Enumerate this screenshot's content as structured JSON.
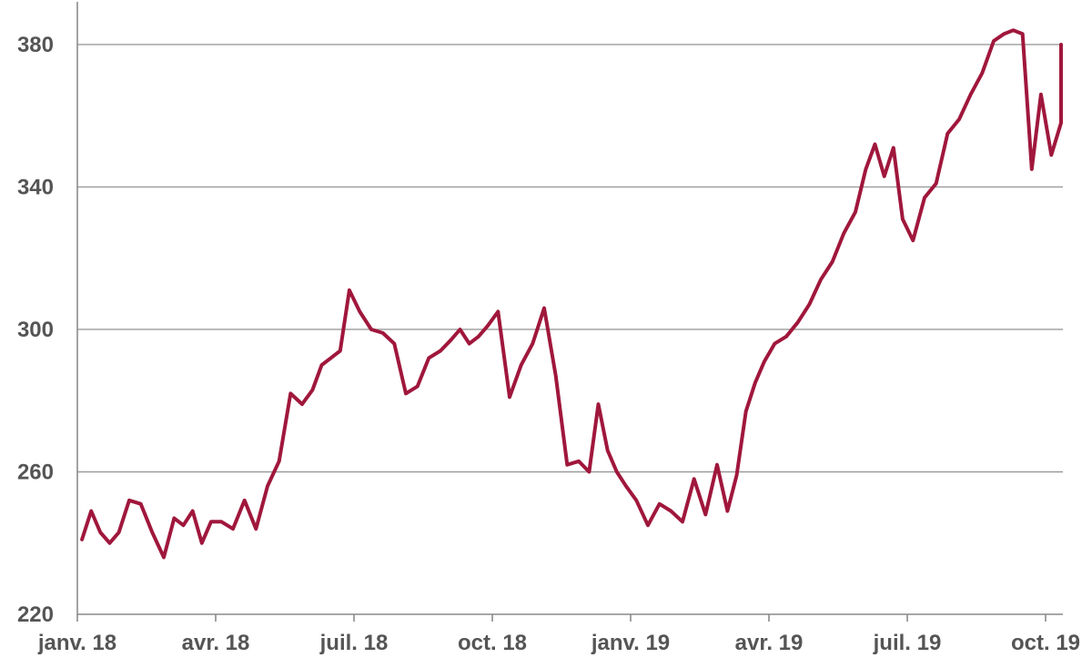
{
  "colors": {
    "series": "#A0173C",
    "grid": "#9a9a9a",
    "axis": "#8a8a8a",
    "tick_text": "#555555",
    "background": "#ffffff"
  },
  "chart_data": {
    "type": "line",
    "title": "",
    "xlabel": "",
    "ylabel": "",
    "ylim": [
      220,
      392
    ],
    "y_ticks": [
      220,
      260,
      300,
      340,
      380
    ],
    "y_tick_labels": [
      "220",
      "260",
      "300",
      "340",
      "380"
    ],
    "x_ticks": [
      {
        "label": "janv. 18",
        "date": "2018-01"
      },
      {
        "label": "avr. 18",
        "date": "2018-04"
      },
      {
        "label": "juil. 18",
        "date": "2018-07"
      },
      {
        "label": "oct. 18",
        "date": "2018-10"
      },
      {
        "label": "janv. 19",
        "date": "2019-01"
      },
      {
        "label": "avr. 19",
        "date": "2019-04"
      },
      {
        "label": "juil. 19",
        "date": "2019-07"
      },
      {
        "label": "oct. 19",
        "date": "2019-10"
      }
    ],
    "grid": "horizontal",
    "legend": "none",
    "series": [
      {
        "x": [
          "2018-01",
          "2018-01",
          "2018-01",
          "2018-01",
          "2018-01",
          "2018-02",
          "2018-02",
          "2018-02",
          "2018-02",
          "2018-03",
          "2018-03",
          "2018-03",
          "2018-03",
          "2018-03",
          "2018-04",
          "2018-04",
          "2018-04",
          "2018-04",
          "2018-05",
          "2018-05",
          "2018-05",
          "2018-05",
          "2018-06",
          "2018-06",
          "2018-06",
          "2018-06",
          "2018-06",
          "2018-07",
          "2018-07",
          "2018-07",
          "2018-07",
          "2018-08",
          "2018-08",
          "2018-08",
          "2018-08",
          "2018-09",
          "2018-09",
          "2018-09",
          "2018-09",
          "2018-09",
          "2018-10",
          "2018-10",
          "2018-10",
          "2018-10",
          "2018-11",
          "2018-11",
          "2018-11",
          "2018-11",
          "2018-12",
          "2018-12",
          "2018-12",
          "2018-12",
          "2018-12",
          "2019-01",
          "2019-01",
          "2019-01",
          "2019-01",
          "2019-02",
          "2019-02",
          "2019-02",
          "2019-02",
          "2019-03",
          "2019-03",
          "2019-03",
          "2019-03",
          "2019-03",
          "2019-04",
          "2019-04",
          "2019-04",
          "2019-04",
          "2019-05",
          "2019-05",
          "2019-05",
          "2019-05",
          "2019-06",
          "2019-06",
          "2019-06",
          "2019-06",
          "2019-06",
          "2019-07",
          "2019-07",
          "2019-07",
          "2019-07",
          "2019-08",
          "2019-08",
          "2019-08",
          "2019-08",
          "2019-09",
          "2019-09",
          "2019-09",
          "2019-09",
          "2019-09",
          "2019-10",
          "2019-10",
          "2019-10",
          "2019-10"
        ],
        "values": [
          241,
          249,
          243,
          240,
          243,
          252,
          251,
          243,
          236,
          247,
          245,
          249,
          240,
          246,
          246,
          244,
          252,
          244,
          256,
          263,
          282,
          279,
          283,
          290,
          292,
          294,
          311,
          305,
          300,
          299,
          296,
          282,
          284,
          292,
          294,
          297,
          300,
          296,
          298,
          301,
          305,
          281,
          290,
          296,
          306,
          287,
          262,
          263,
          260,
          279,
          266,
          260,
          256,
          252,
          245,
          251,
          249,
          246,
          258,
          248,
          262,
          249,
          259,
          277,
          285,
          291,
          296,
          298,
          302,
          307,
          314,
          319,
          327,
          333,
          345,
          352,
          343,
          351,
          331,
          325,
          337,
          341,
          355,
          359,
          366,
          372,
          381,
          383,
          384,
          383,
          345,
          366,
          349,
          358,
          380,
          376
        ]
      }
    ]
  }
}
